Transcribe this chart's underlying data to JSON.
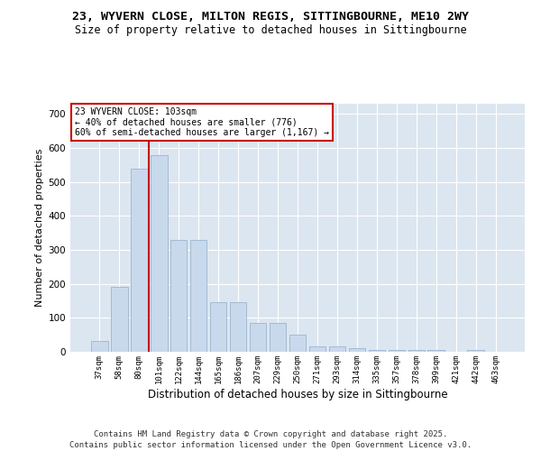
{
  "title": "23, WYVERN CLOSE, MILTON REGIS, SITTINGBOURNE, ME10 2WY",
  "subtitle": "Size of property relative to detached houses in Sittingbourne",
  "xlabel": "Distribution of detached houses by size in Sittingbourne",
  "ylabel": "Number of detached properties",
  "categories": [
    "37sqm",
    "58sqm",
    "80sqm",
    "101sqm",
    "122sqm",
    "144sqm",
    "165sqm",
    "186sqm",
    "207sqm",
    "229sqm",
    "250sqm",
    "271sqm",
    "293sqm",
    "314sqm",
    "335sqm",
    "357sqm",
    "378sqm",
    "399sqm",
    "421sqm",
    "442sqm",
    "463sqm"
  ],
  "bar_values": [
    33,
    190,
    540,
    580,
    330,
    330,
    145,
    145,
    85,
    85,
    50,
    15,
    15,
    10,
    5,
    5,
    5,
    5,
    0,
    5,
    0
  ],
  "bar_color": "#c9d9ec",
  "bar_edge_color": "#9ab5d0",
  "vline_color": "#cc0000",
  "annotation_text": "23 WYVERN CLOSE: 103sqm\n← 40% of detached houses are smaller (776)\n60% of semi-detached houses are larger (1,167) →",
  "annotation_box_color": "#ffffff",
  "annotation_box_edge": "#cc0000",
  "ylim": [
    0,
    730
  ],
  "yticks": [
    0,
    100,
    200,
    300,
    400,
    500,
    600,
    700
  ],
  "background_color": "#dce6f0",
  "grid_color": "#ffffff",
  "footer": "Contains HM Land Registry data © Crown copyright and database right 2025.\nContains public sector information licensed under the Open Government Licence v3.0.",
  "title_fontsize": 9.5,
  "subtitle_fontsize": 8.5,
  "footer_fontsize": 6.5,
  "ylabel_fontsize": 8,
  "xlabel_fontsize": 8.5
}
